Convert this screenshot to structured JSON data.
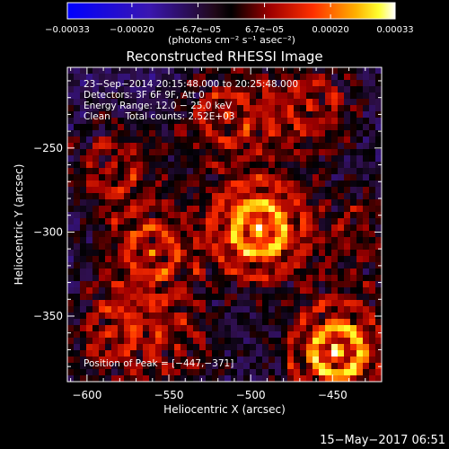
{
  "chart_data": {
    "type": "heatmap",
    "title": "Reconstructed RHESSI Image",
    "xlabel": "Heliocentric X (arcsec)",
    "ylabel": "Heliocentric Y (arcsec)",
    "xlim": [
      -612,
      -420
    ],
    "ylim": [
      -389,
      -202
    ],
    "x_ticks": [
      -600,
      -550,
      -500,
      -450
    ],
    "y_ticks": [
      -250,
      -300,
      -350
    ],
    "x_tick_labels": [
      "−600",
      "−550",
      "−500",
      "−450"
    ],
    "y_tick_labels": [
      "−250",
      "−300",
      "−350"
    ],
    "colorbar": {
      "min": -0.00033,
      "max": 0.00033,
      "ticks": [
        -0.00033,
        -0.0002,
        -6.7e-05,
        6.7e-05,
        0.0002,
        0.00033
      ],
      "tick_labels": [
        "−0.00033",
        "−0.00020",
        "−6.7e−05",
        "6.7e−05",
        "0.00020",
        "0.00033"
      ],
      "unit_label": "(photons cm⁻² s⁻¹ asec⁻²)",
      "colormap": "blue-black-red-yellow-white"
    },
    "annotations": [
      "23−Sep−2014 20:15:48.000 to 20:25:48.000",
      "Detectors: 3F 6F 9F, Att 0",
      "Energy Range: 12.0 − 25.0 keV",
      "Clean     Total counts: 2.52E+03"
    ],
    "peak": {
      "label": "Position of Peak = [−447,−371]",
      "x": -447,
      "y": -371
    },
    "sources": [
      {
        "x": -495,
        "y": -298,
        "strength": 1.0
      },
      {
        "x": -447,
        "y": -371,
        "strength": 0.95
      },
      {
        "x": -560,
        "y": -312,
        "strength": 0.55
      },
      {
        "x": -515,
        "y": -232,
        "strength": 0.5
      },
      {
        "x": -463,
        "y": -225,
        "strength": 0.5
      },
      {
        "x": -585,
        "y": -262,
        "strength": 0.45
      },
      {
        "x": -585,
        "y": -360,
        "strength": 0.45
      },
      {
        "x": -545,
        "y": -368,
        "strength": 0.35
      },
      {
        "x": -430,
        "y": -300,
        "strength": 0.35
      }
    ]
  },
  "footer": {
    "timestamp": "15−May−2017 06:51"
  },
  "colors": {
    "background": "#000000",
    "foreground": "#ffffff"
  }
}
